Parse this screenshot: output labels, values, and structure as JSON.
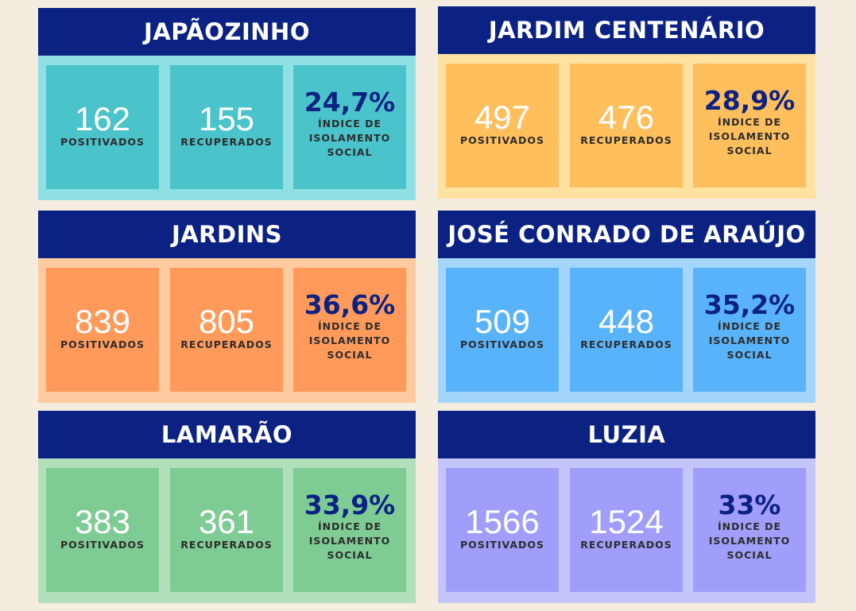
{
  "labels": {
    "positivados": "POSITIVADOS",
    "recuperados": "RECUPERADOS",
    "indice": "ÍNDICE DE ISOLAMENTO SOCIAL"
  },
  "neighborhoods": [
    {
      "name": "JAPÃOZINHO",
      "positivados": "162",
      "recuperados": "155",
      "isolamento": "24,7%",
      "colors": {
        "panel": "#8ee0e2",
        "box": "#4bc3cb"
      }
    },
    {
      "name": "JARDIM CENTENÁRIO",
      "positivados": "497",
      "recuperados": "476",
      "isolamento": "28,9%",
      "colors": {
        "panel": "#ffe1a1",
        "box": "#ffbf5d"
      }
    },
    {
      "name": "JARDINS",
      "positivados": "839",
      "recuperados": "805",
      "isolamento": "36,6%",
      "colors": {
        "panel": "#ffcaa0",
        "box": "#ff9a5b"
      }
    },
    {
      "name": "JOSÉ CONRADO DE ARAÚJO",
      "positivados": "509",
      "recuperados": "448",
      "isolamento": "35,2%",
      "colors": {
        "panel": "#a4d6fb",
        "box": "#59b3fa"
      }
    },
    {
      "name": "LAMARÃO",
      "positivados": "383",
      "recuperados": "361",
      "isolamento": "33,9%",
      "colors": {
        "panel": "#afe0ba",
        "box": "#7ecb94"
      }
    },
    {
      "name": "LUZIA",
      "positivados": "1566",
      "recuperados": "1524",
      "isolamento": "33%",
      "colors": {
        "panel": "#c4c5fb",
        "box": "#a09efa"
      }
    }
  ]
}
